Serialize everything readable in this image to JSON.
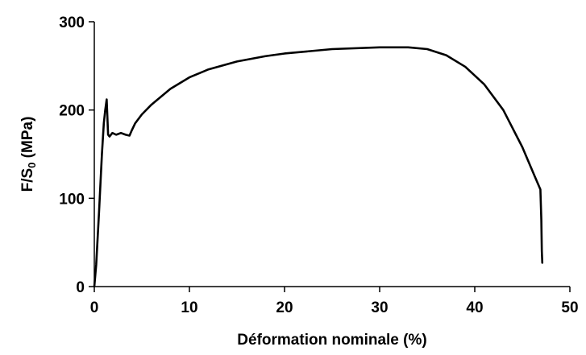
{
  "chart_data": {
    "type": "line",
    "xlabel": "Déformation nominale (%)",
    "ylabel": {
      "main": "F/S",
      "subscript": "0",
      "suffix": " (MPa)"
    },
    "xlim": [
      0,
      50
    ],
    "ylim": [
      0,
      300
    ],
    "x_ticks": [
      0,
      10,
      20,
      30,
      40,
      50
    ],
    "y_ticks": [
      0,
      100,
      200,
      300
    ],
    "grid": false,
    "series": [
      {
        "x": [
          0,
          0.2,
          0.5,
          0.8,
          1.0,
          1.15,
          1.3,
          1.45,
          1.6,
          1.9,
          2.3,
          2.8,
          3.3,
          3.7,
          3.9,
          4.3,
          5,
          6,
          8,
          10,
          12,
          15,
          18,
          20,
          25,
          30,
          33,
          35,
          37,
          39,
          41,
          43,
          45,
          46.3,
          46.9,
          47.0,
          47.05,
          47.1
        ],
        "y": [
          0,
          25,
          85,
          150,
          185,
          200,
          212,
          172,
          170,
          174,
          172,
          174,
          172,
          171,
          176,
          185,
          195,
          206,
          224,
          237,
          246,
          255,
          261,
          264,
          269,
          271,
          271,
          269,
          262,
          249,
          229,
          200,
          158,
          125,
          110,
          75,
          40,
          27
        ]
      }
    ]
  }
}
